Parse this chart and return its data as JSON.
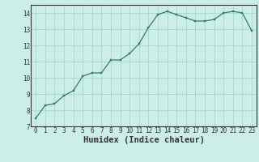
{
  "x": [
    0,
    1,
    2,
    3,
    4,
    5,
    6,
    7,
    8,
    9,
    10,
    11,
    12,
    13,
    14,
    15,
    16,
    17,
    18,
    19,
    20,
    21,
    22,
    23
  ],
  "y": [
    7.5,
    8.3,
    8.4,
    8.9,
    9.2,
    10.1,
    10.3,
    10.3,
    11.1,
    11.1,
    11.5,
    12.1,
    13.1,
    13.9,
    14.1,
    13.9,
    13.7,
    13.5,
    13.5,
    13.6,
    14.0,
    14.1,
    14.0,
    12.9
  ],
  "xlabel": "Humidex (Indice chaleur)",
  "xlim": [
    -0.5,
    23.5
  ],
  "ylim": [
    7,
    14.5
  ],
  "yticks": [
    7,
    8,
    9,
    10,
    11,
    12,
    13,
    14
  ],
  "xticks": [
    0,
    1,
    2,
    3,
    4,
    5,
    6,
    7,
    8,
    9,
    10,
    11,
    12,
    13,
    14,
    15,
    16,
    17,
    18,
    19,
    20,
    21,
    22,
    23
  ],
  "line_color": "#2e7d6e",
  "marker_color": "#2e7d6e",
  "bg_color": "#cceee8",
  "grid_color": "#aad4cc",
  "axis_color": "#333333",
  "plot_bg_color": "#cceee8",
  "tick_label_fontsize": 5.5,
  "xlabel_fontsize": 7.5
}
